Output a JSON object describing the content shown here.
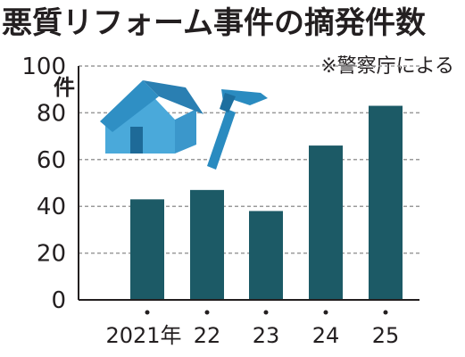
{
  "title": "悪質リフォーム事件の摘発件数",
  "source_note": "※警察庁による",
  "unit_label": "件",
  "colors": {
    "bar": "#1c5a66",
    "grid": "#9a9a9a",
    "axis": "#231f20",
    "house_wall": "#4aa9da",
    "house_roof": "#2f8fc4",
    "hammer": "#2a8bc0"
  },
  "chart_data": {
    "type": "bar",
    "title": "悪質リフォーム事件の摘発件数",
    "ylabel": "件",
    "xlabel": "",
    "categories": [
      "2021年",
      "22",
      "23",
      "24",
      "25"
    ],
    "values": [
      43,
      47,
      38,
      66,
      83
    ],
    "ylim": [
      0,
      100
    ],
    "yticks": [
      0,
      20,
      40,
      60,
      80,
      100
    ],
    "grid": true,
    "grid_style": "dashed"
  },
  "illustrations": [
    "house-icon",
    "hammer-icon"
  ]
}
